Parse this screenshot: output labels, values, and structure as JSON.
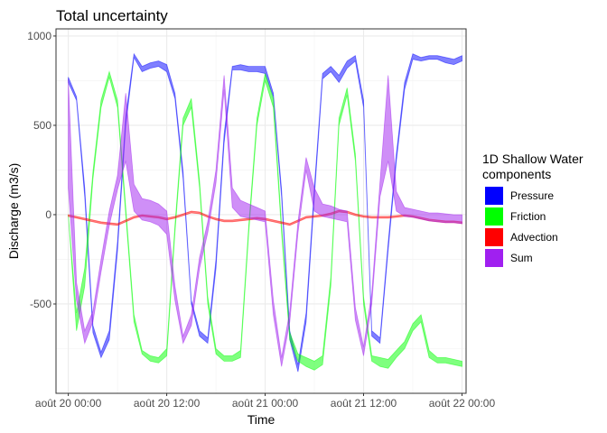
{
  "chart_data": {
    "type": "area",
    "title": "Total uncertainty",
    "xlabel": "Time",
    "ylabel": "Discharge (m3/s)",
    "x_unit": "hours since août 20 00:00",
    "xlim": [
      -1.5,
      48.5
    ],
    "ylim": [
      -1000,
      1040
    ],
    "x_ticks": [
      {
        "value": 0,
        "label": "août 20 00:00"
      },
      {
        "value": 12,
        "label": "août 20 12:00"
      },
      {
        "value": 24,
        "label": "août 21 00:00"
      },
      {
        "value": 36,
        "label": "août 21 12:00"
      },
      {
        "value": 48,
        "label": "août 22 00:00"
      }
    ],
    "y_ticks": [
      {
        "value": 1000,
        "label": "1000"
      },
      {
        "value": 500,
        "label": "500"
      },
      {
        "value": 0,
        "label": "0"
      },
      {
        "value": -500,
        "label": "-500"
      }
    ],
    "grid": true,
    "legend": {
      "title_line1": "1D Shallow Water",
      "title_line2": "components",
      "placement": "right"
    },
    "series": [
      {
        "name": "Pressure",
        "color": "#0000ff",
        "x": [
          0,
          1,
          2,
          3,
          4,
          5,
          6,
          7,
          8,
          9,
          10,
          11,
          12,
          13,
          14,
          15,
          16,
          17,
          18,
          19,
          20,
          21,
          22,
          23,
          24,
          25,
          26,
          27,
          28,
          29,
          30,
          31,
          32,
          33,
          34,
          35,
          36,
          37,
          38,
          39,
          40,
          41,
          42,
          43,
          44,
          45,
          46,
          47,
          48
        ],
        "low": [
          740,
          640,
          100,
          -660,
          -800,
          -700,
          -200,
          500,
          880,
          800,
          820,
          830,
          800,
          650,
          200,
          -500,
          -680,
          -720,
          -300,
          400,
          810,
          810,
          800,
          800,
          790,
          660,
          100,
          -700,
          -880,
          -600,
          100,
          760,
          800,
          740,
          820,
          860,
          600,
          -680,
          -720,
          -200,
          300,
          700,
          870,
          860,
          870,
          870,
          850,
          840,
          860
        ],
        "high": [
          770,
          660,
          150,
          -620,
          -770,
          -650,
          -150,
          550,
          900,
          830,
          850,
          860,
          840,
          680,
          240,
          -480,
          -650,
          -690,
          -250,
          450,
          830,
          840,
          830,
          830,
          830,
          680,
          140,
          -650,
          -840,
          -550,
          150,
          790,
          830,
          780,
          860,
          890,
          640,
          -650,
          -690,
          -160,
          340,
          740,
          900,
          880,
          890,
          890,
          880,
          870,
          890
        ]
      },
      {
        "name": "Friction",
        "color": "#00ff00",
        "x": [
          0,
          1,
          2,
          3,
          4,
          5,
          6,
          7,
          8,
          9,
          10,
          11,
          12,
          13,
          14,
          15,
          16,
          17,
          18,
          19,
          20,
          21,
          22,
          23,
          24,
          25,
          26,
          27,
          28,
          29,
          30,
          31,
          32,
          33,
          34,
          35,
          36,
          37,
          38,
          39,
          40,
          41,
          42,
          43,
          44,
          45,
          46,
          47,
          48
        ],
        "low": [
          0,
          -650,
          -400,
          200,
          600,
          770,
          600,
          0,
          -600,
          -780,
          -820,
          -830,
          -790,
          -100,
          500,
          600,
          150,
          -500,
          -780,
          -820,
          -820,
          -800,
          -100,
          500,
          750,
          600,
          -100,
          -700,
          -820,
          -850,
          -870,
          -840,
          -400,
          500,
          670,
          300,
          -500,
          -820,
          -850,
          -860,
          -800,
          -750,
          -650,
          -600,
          -800,
          -830,
          -830,
          -840,
          -850
        ],
        "high": [
          0,
          -550,
          -300,
          240,
          640,
          800,
          640,
          40,
          -560,
          -760,
          -790,
          -800,
          -750,
          -60,
          540,
          650,
          190,
          -460,
          -750,
          -790,
          -790,
          -760,
          -60,
          540,
          790,
          650,
          -60,
          -660,
          -780,
          -800,
          -820,
          -790,
          -350,
          540,
          710,
          340,
          -460,
          -790,
          -800,
          -810,
          -760,
          -710,
          -610,
          -560,
          -760,
          -800,
          -800,
          -810,
          -820
        ]
      },
      {
        "name": "Advection",
        "color": "#ff0000",
        "x": [
          0,
          1,
          2,
          3,
          4,
          5,
          6,
          7,
          8,
          9,
          10,
          11,
          12,
          13,
          14,
          15,
          16,
          17,
          18,
          19,
          20,
          21,
          22,
          23,
          24,
          25,
          26,
          27,
          28,
          29,
          30,
          31,
          32,
          33,
          34,
          35,
          36,
          37,
          38,
          39,
          40,
          41,
          42,
          43,
          44,
          45,
          46,
          47,
          48
        ],
        "low": [
          -10,
          -20,
          -30,
          -40,
          -50,
          -55,
          -60,
          -40,
          -20,
          -10,
          -15,
          -20,
          -30,
          -20,
          -5,
          10,
          5,
          -15,
          -30,
          -40,
          -40,
          -35,
          -30,
          -25,
          -30,
          -40,
          -50,
          -60,
          -40,
          -20,
          -15,
          -10,
          0,
          15,
          10,
          -5,
          -15,
          -20,
          -20,
          -20,
          -15,
          -10,
          -15,
          -25,
          -35,
          -40,
          -45,
          -45,
          -50
        ],
        "high": [
          0,
          -10,
          -20,
          -30,
          -40,
          -45,
          -50,
          -30,
          -10,
          0,
          -5,
          -10,
          -20,
          -10,
          5,
          20,
          15,
          -5,
          -20,
          -30,
          -30,
          -25,
          -20,
          -15,
          -20,
          -30,
          -40,
          -50,
          -30,
          -10,
          -5,
          0,
          10,
          25,
          20,
          5,
          -5,
          -10,
          -10,
          -10,
          -5,
          0,
          -5,
          -15,
          -25,
          -30,
          -35,
          -35,
          -40
        ]
      },
      {
        "name": "Sum",
        "color": "#a020f0",
        "x": [
          0,
          1,
          2,
          3,
          4,
          5,
          6,
          7,
          8,
          9,
          10,
          11,
          12,
          13,
          14,
          15,
          16,
          17,
          18,
          19,
          20,
          21,
          22,
          23,
          24,
          25,
          26,
          27,
          28,
          29,
          30,
          31,
          32,
          33,
          34,
          35,
          36,
          37,
          38,
          39,
          40,
          41,
          42,
          43,
          44,
          45,
          46,
          47,
          48
        ],
        "low": [
          150,
          -480,
          -720,
          -600,
          -320,
          -60,
          140,
          300,
          20,
          -30,
          -40,
          -60,
          -110,
          -480,
          -720,
          -620,
          -300,
          -100,
          180,
          700,
          40,
          -10,
          -20,
          -30,
          -40,
          -560,
          -850,
          -600,
          -100,
          250,
          20,
          -10,
          -20,
          -30,
          -40,
          -590,
          -790,
          -500,
          100,
          300,
          20,
          -10,
          -15,
          -25,
          -35,
          -40,
          -45,
          -45,
          -50
        ],
        "high": [
          760,
          -380,
          -650,
          -540,
          -250,
          20,
          220,
          680,
          170,
          90,
          80,
          60,
          20,
          -400,
          -680,
          -560,
          -240,
          -40,
          250,
          780,
          150,
          80,
          60,
          40,
          20,
          -480,
          -800,
          -540,
          -40,
          320,
          150,
          60,
          50,
          30,
          20,
          -520,
          -740,
          -440,
          180,
          780,
          130,
          40,
          30,
          20,
          10,
          10,
          5,
          0,
          0
        ]
      }
    ]
  }
}
